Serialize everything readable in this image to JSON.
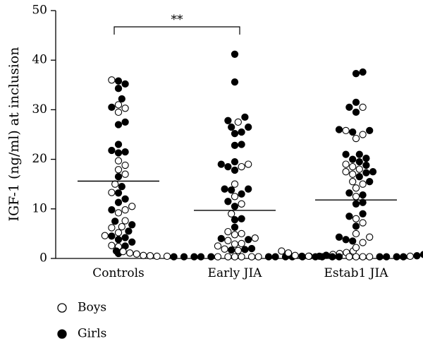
{
  "chart_data": {
    "type": "scatter",
    "ylabel": "IGF-1 (ng/ml) at inclusion",
    "ylim": [
      0,
      50
    ],
    "yticks": [
      "0",
      "10",
      "20",
      "30",
      "40",
      "50"
    ],
    "categories": [
      "Controls",
      "Early JIA",
      "Estab1 JIA"
    ],
    "significance": {
      "label": "**",
      "from": "Controls",
      "to": "Early JIA"
    },
    "means": [
      15.6,
      9.7,
      11.8
    ],
    "legend": {
      "placement": "bottom-left",
      "items": [
        {
          "name": "Boys",
          "marker": "open-circle"
        },
        {
          "name": "Girls",
          "marker": "filled-circle"
        }
      ]
    },
    "series": [
      {
        "name": "Boys",
        "marker": "open-circle",
        "groups": [
          [
            36,
            31,
            30.3,
            29.5,
            19.7,
            18.8,
            17.9,
            17,
            15,
            13.3,
            10.5,
            9.8,
            9.2,
            7.6,
            6.4,
            6.2,
            5.2,
            4.6,
            2.6,
            2.4
          ],
          [
            27.5,
            19,
            18.5,
            15,
            12.5,
            11,
            9,
            5.4,
            5,
            4.8,
            4.1,
            3.6,
            3,
            2.9,
            2.5,
            1.9,
            1.6,
            1.5,
            1.4,
            1.2,
            1.1,
            1,
            0.9,
            0.8,
            0.6,
            0.4,
            0.3,
            0.3,
            0.3,
            0.2,
            0.2,
            0.2,
            0.2,
            0.2,
            0.2
          ],
          [
            30.5,
            25.8,
            25,
            24.2,
            19,
            18.5,
            18,
            17.5,
            17,
            15.5,
            15,
            14.2,
            12.5,
            8,
            7.2,
            5,
            4.3,
            3.2,
            2.2,
            1.5,
            1.1,
            0.6,
            0.3,
            0.3,
            0.2,
            0.2,
            0.2,
            0.2
          ]
        ]
      },
      {
        "name": "Girls",
        "marker": "filled-circle",
        "groups": [
          [
            35.8,
            35.2,
            34.3,
            32.2,
            30.5,
            27.5,
            27,
            23,
            21.8,
            21.5,
            21.3,
            16.5,
            14.5,
            13.2,
            12,
            11.3,
            9.8,
            7.5,
            6.8,
            5.5,
            4.5,
            4.2,
            3.8,
            3.3,
            2.5,
            1
          ],
          [
            41.2,
            35.6,
            28.5,
            27.8,
            26.5,
            26.5,
            25.5,
            25.2,
            23,
            22.8,
            19.5,
            19,
            18.5,
            17.8,
            14,
            14,
            13.8,
            13,
            11.5,
            10.5,
            8,
            7.8,
            6.3,
            4,
            3.8,
            2,
            1.8,
            1.7,
            1.5,
            0.5,
            0.3,
            0.2,
            0.2,
            0.2,
            0.2,
            0.2,
            0.2,
            0.2,
            0.2,
            0.2,
            0.2
          ],
          [
            37.6,
            37.3,
            31.5,
            30.5,
            29.5,
            26,
            25.8,
            25.5,
            21,
            21,
            20.2,
            20,
            19.5,
            18.8,
            17.5,
            17.3,
            16.5,
            15.5,
            13.2,
            12.8,
            11.3,
            11,
            9,
            8.5,
            6.5,
            4.3,
            3.8,
            3.5,
            1.2,
            0.8,
            0.4,
            0.3,
            0.2,
            0.2,
            0.2,
            0.2,
            0.2,
            0.2,
            0.2,
            0.2
          ]
        ]
      }
    ]
  }
}
